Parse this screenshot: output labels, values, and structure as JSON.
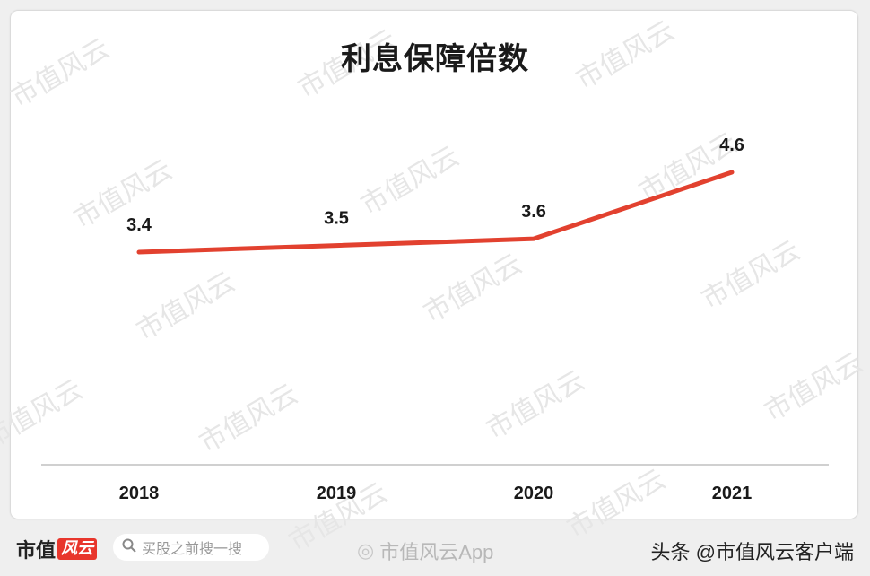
{
  "chart_data": {
    "type": "line",
    "title": "利息保障倍数",
    "categories": [
      "2018",
      "2019",
      "2020",
      "2021"
    ],
    "values": [
      3.4,
      3.5,
      3.6,
      4.6
    ],
    "data_labels": [
      "3.4",
      "3.5",
      "3.6",
      "4.6"
    ],
    "line_color": "#e2412f",
    "grid": false,
    "legend": "none"
  },
  "watermark": "市值风云",
  "footer": {
    "logo_text": "市值",
    "logo_mark": "风云",
    "search_placeholder": "买股之前搜一搜",
    "app_text": "市值风云App",
    "credit": "头条 @市值风云客户端"
  }
}
